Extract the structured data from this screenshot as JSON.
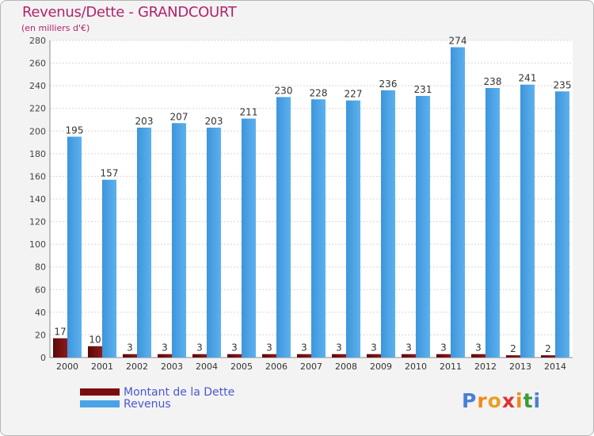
{
  "title": "Revenus/Dette - GRANDCOURT",
  "subtitle": "(en milliers d'€)",
  "logo": {
    "text": "Proxiti",
    "colors": [
      "#4a7fd4",
      "#f08a1a",
      "#e8a020",
      "#d33",
      "#f08a1a",
      "#3a9a3a",
      "#4a7fd4"
    ]
  },
  "legend": [
    {
      "label": "Montant de la Dette",
      "color": "#7a0d0d"
    },
    {
      "label": "Revenus",
      "color": "#4aa3e6"
    }
  ],
  "chart_data": {
    "type": "bar",
    "categories": [
      "2000",
      "2001",
      "2002",
      "2003",
      "2004",
      "2005",
      "2006",
      "2007",
      "2008",
      "2009",
      "2010",
      "2011",
      "2012",
      "2013",
      "2014"
    ],
    "series": [
      {
        "name": "Montant de la Dette",
        "color": "#7a0d0d",
        "values": [
          17,
          10,
          3,
          3,
          3,
          3,
          3,
          3,
          3,
          3,
          3,
          3,
          3,
          2,
          2
        ]
      },
      {
        "name": "Revenus",
        "color": "#4aa3e6",
        "values": [
          195,
          157,
          203,
          207,
          203,
          211,
          230,
          228,
          227,
          236,
          231,
          274,
          238,
          241,
          235
        ]
      }
    ],
    "ylim": [
      0,
      280
    ],
    "yticks": [
      0,
      20,
      40,
      60,
      80,
      100,
      120,
      140,
      160,
      180,
      200,
      220,
      240,
      260,
      280
    ],
    "grid": true,
    "legend_position": "bottom-left"
  }
}
